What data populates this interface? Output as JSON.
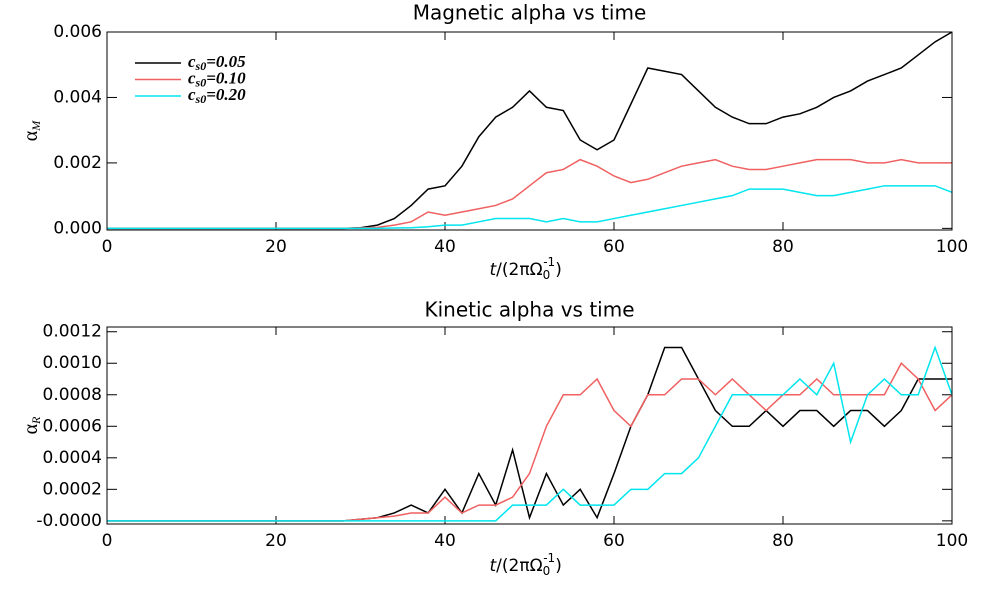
{
  "chart_data": [
    {
      "type": "line",
      "title": "Magnetic alpha vs time",
      "xlabel": [
        "t",
        "/(2πΩ",
        "0",
        "-1",
        ")"
      ],
      "ylabel": [
        "α",
        "M"
      ],
      "x": [
        0,
        2,
        4,
        6,
        8,
        10,
        12,
        14,
        16,
        18,
        20,
        22,
        24,
        26,
        28,
        30,
        32,
        34,
        36,
        38,
        40,
        42,
        44,
        46,
        48,
        50,
        52,
        54,
        56,
        58,
        60,
        62,
        64,
        66,
        68,
        70,
        72,
        74,
        76,
        78,
        80,
        82,
        84,
        86,
        88,
        90,
        92,
        94,
        96,
        98,
        100
      ],
      "xlim": [
        0,
        100
      ],
      "xticks": [
        0,
        20,
        40,
        60,
        80,
        100
      ],
      "ylim": [
        -5e-05,
        0.006
      ],
      "yticks": [
        {
          "value": 0,
          "label": "0.000"
        },
        {
          "value": 0.002,
          "label": "0.002"
        },
        {
          "value": 0.004,
          "label": "0.004"
        },
        {
          "value": 0.006,
          "label": "0.006"
        }
      ],
      "legend": "upper left",
      "series": [
        {
          "name": [
            "c",
            "s0",
            "=0.05"
          ],
          "color": "#000000",
          "values": [
            0,
            0,
            0,
            0,
            0,
            0,
            0,
            0,
            0,
            0,
            0,
            0,
            0,
            0,
            0,
            2e-05,
            0.0001,
            0.0003,
            0.0007,
            0.0012,
            0.0013,
            0.0019,
            0.0028,
            0.0034,
            0.0037,
            0.0042,
            0.0037,
            0.0036,
            0.0027,
            0.0024,
            0.0027,
            0.0038,
            0.0049,
            0.0048,
            0.0047,
            0.0042,
            0.0037,
            0.0034,
            0.0032,
            0.0032,
            0.0034,
            0.0035,
            0.0037,
            0.004,
            0.0042,
            0.0045,
            0.0047,
            0.0049,
            0.0053,
            0.0057,
            0.006
          ]
        },
        {
          "name": [
            "c",
            "s0",
            "=0.10"
          ],
          "color": "#f06060",
          "values": [
            0,
            0,
            0,
            0,
            0,
            0,
            0,
            0,
            0,
            0,
            0,
            0,
            0,
            0,
            0,
            1e-05,
            3e-05,
            0.0001,
            0.0002,
            0.0005,
            0.0004,
            0.0005,
            0.0006,
            0.0007,
            0.0009,
            0.0013,
            0.0017,
            0.0018,
            0.0021,
            0.0019,
            0.0016,
            0.0014,
            0.0015,
            0.0017,
            0.0019,
            0.002,
            0.0021,
            0.0019,
            0.0018,
            0.0018,
            0.0019,
            0.002,
            0.0021,
            0.0021,
            0.0021,
            0.002,
            0.002,
            0.0021,
            0.002,
            0.002,
            0.002
          ]
        },
        {
          "name": [
            "c",
            "s0",
            "=0.20"
          ],
          "color": "#00e5ee",
          "values": [
            0,
            0,
            0,
            0,
            0,
            0,
            0,
            0,
            0,
            0,
            0,
            0,
            0,
            0,
            0,
            0,
            0,
            1e-05,
            2e-05,
            5e-05,
            0.0001,
            0.0001,
            0.0002,
            0.0003,
            0.0003,
            0.0003,
            0.0002,
            0.0003,
            0.0002,
            0.0002,
            0.0003,
            0.0004,
            0.0005,
            0.0006,
            0.0007,
            0.0008,
            0.0009,
            0.001,
            0.0012,
            0.0012,
            0.0012,
            0.0011,
            0.001,
            0.001,
            0.0011,
            0.0012,
            0.0013,
            0.0013,
            0.0013,
            0.0013,
            0.0011
          ]
        }
      ]
    },
    {
      "type": "line",
      "title": "Kinetic alpha vs time",
      "xlabel": [
        "t",
        "/(2πΩ",
        "0",
        "-1",
        ")"
      ],
      "ylabel": [
        "α",
        "R"
      ],
      "x": [
        0,
        2,
        4,
        6,
        8,
        10,
        12,
        14,
        16,
        18,
        20,
        22,
        24,
        26,
        28,
        30,
        32,
        34,
        36,
        38,
        40,
        42,
        44,
        46,
        48,
        50,
        52,
        54,
        56,
        58,
        60,
        62,
        64,
        66,
        68,
        70,
        72,
        74,
        76,
        78,
        80,
        82,
        84,
        86,
        88,
        90,
        92,
        94,
        96,
        98,
        100
      ],
      "xlim": [
        0,
        100
      ],
      "xticks": [
        0,
        20,
        40,
        60,
        80,
        100
      ],
      "ylim": [
        -2e-05,
        0.00123
      ],
      "yticks": [
        {
          "value": 0,
          "label": "-0.0000"
        },
        0.0002,
        0.0004,
        0.0006,
        0.0008,
        {
          "value": 0.001,
          "label": "0.0010"
        },
        0.0012
      ],
      "series": [
        {
          "color": "#000000",
          "values": [
            0,
            0,
            0,
            0,
            0,
            0,
            0,
            0,
            0,
            0,
            0,
            0,
            0,
            0,
            0,
            1e-05,
            2e-05,
            5e-05,
            0.0001,
            5e-05,
            0.0002,
            5e-05,
            0.0003,
            0.0001,
            0.00045,
            2e-05,
            0.0003,
            0.0001,
            0.0002,
            2e-05,
            0.0003,
            0.0006,
            0.0008,
            0.0011,
            0.0011,
            0.0009,
            0.0007,
            0.0006,
            0.0006,
            0.0007,
            0.0006,
            0.0007,
            0.0007,
            0.0006,
            0.0007,
            0.0007,
            0.0006,
            0.0007,
            0.0009,
            0.0009,
            0.0009
          ]
        },
        {
          "color": "#f06060",
          "values": [
            0,
            0,
            0,
            0,
            0,
            0,
            0,
            0,
            0,
            0,
            0,
            0,
            0,
            0,
            0,
            1e-05,
            2e-05,
            3e-05,
            5e-05,
            5e-05,
            0.00015,
            5e-05,
            0.0001,
            0.0001,
            0.00015,
            0.0003,
            0.0006,
            0.0008,
            0.0008,
            0.0009,
            0.0007,
            0.0006,
            0.0008,
            0.0008,
            0.0009,
            0.0009,
            0.0008,
            0.0009,
            0.0008,
            0.0007,
            0.0008,
            0.0008,
            0.0009,
            0.0008,
            0.0008,
            0.0008,
            0.0008,
            0.001,
            0.0009,
            0.0007,
            0.0008
          ]
        },
        {
          "color": "#00e5ee",
          "values": [
            0,
            0,
            0,
            0,
            0,
            0,
            0,
            0,
            0,
            0,
            0,
            0,
            0,
            0,
            0,
            0,
            0,
            0,
            0,
            0,
            0,
            0,
            0,
            0,
            0.0001,
            0.0001,
            0.0001,
            0.0002,
            0.0001,
            0.0001,
            0.0001,
            0.0002,
            0.0002,
            0.0003,
            0.0003,
            0.0004,
            0.0006,
            0.0008,
            0.0008,
            0.0008,
            0.0008,
            0.0009,
            0.0008,
            0.001,
            0.0005,
            0.0008,
            0.0009,
            0.0008,
            0.0008,
            0.0011,
            0.0008
          ]
        }
      ]
    }
  ]
}
